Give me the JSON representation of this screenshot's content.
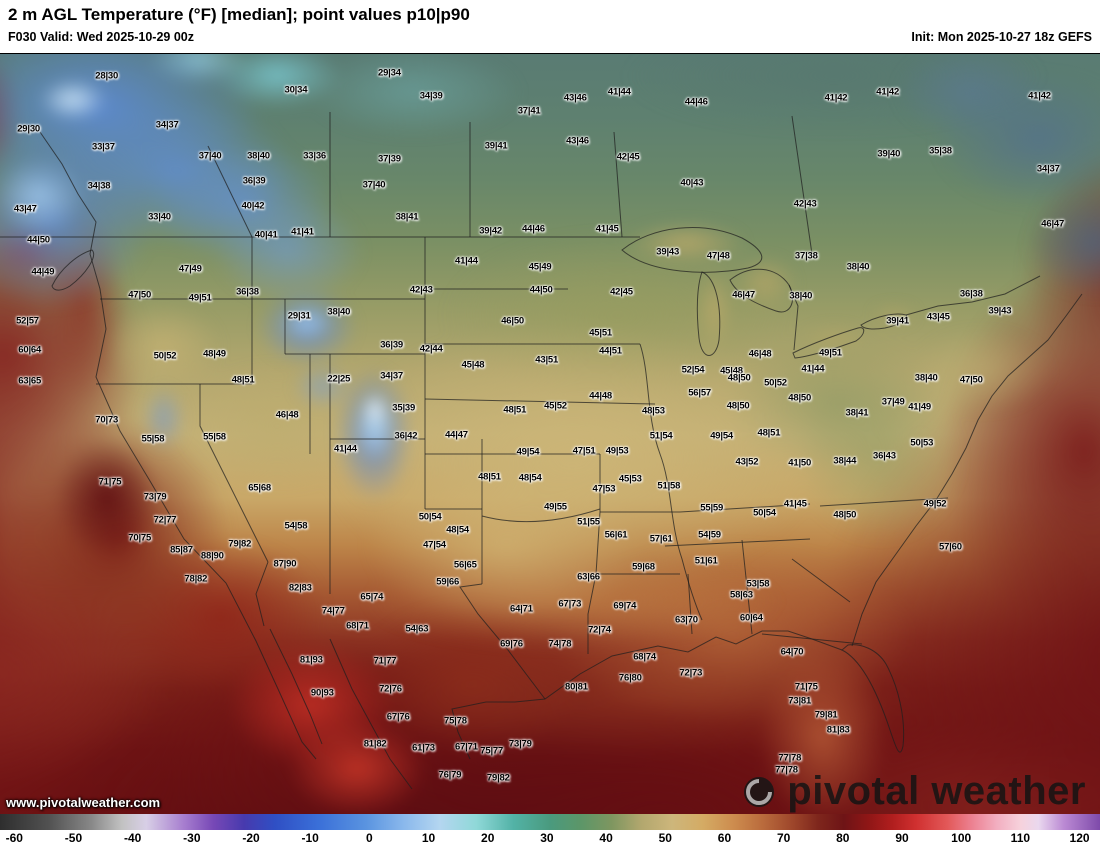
{
  "header": {
    "title": "2 m AGL Temperature (°F) [median]; point values p10|p90",
    "valid_label": "F030 Valid: Wed 2025-10-29 00z",
    "init_label": "Init: Mon 2025-10-27 18z GEFS"
  },
  "watermarks": {
    "url": "www.pivotalweather.com",
    "brand": "pivotal weather"
  },
  "colorbar": {
    "unit": "°F",
    "min": -60,
    "max": 120,
    "ticks": [
      -60,
      -50,
      -40,
      -30,
      -20,
      -10,
      0,
      10,
      20,
      30,
      40,
      50,
      60,
      70,
      80,
      90,
      100,
      110,
      120
    ],
    "tick_start_pct": 1.3,
    "tick_step_pct": 5.38,
    "stops": [
      [
        0,
        "#2e2e2e"
      ],
      [
        4.4,
        "#515151"
      ],
      [
        8.3,
        "#888888"
      ],
      [
        11.1,
        "#c2c2c2"
      ],
      [
        13.3,
        "#d8cfe6"
      ],
      [
        16.7,
        "#a77ecf"
      ],
      [
        19.4,
        "#7748b6"
      ],
      [
        22.2,
        "#473aae"
      ],
      [
        25,
        "#2f4fc4"
      ],
      [
        28.9,
        "#3a6fd8"
      ],
      [
        33.3,
        "#5a94e0"
      ],
      [
        36.7,
        "#8ab8ec"
      ],
      [
        40,
        "#b4d6f0"
      ],
      [
        43.3,
        "#8fd8d8"
      ],
      [
        46.7,
        "#52b2a6"
      ],
      [
        50,
        "#4a9a7e"
      ],
      [
        52.8,
        "#5c9668"
      ],
      [
        55.6,
        "#7e9660"
      ],
      [
        58.3,
        "#b2a76e"
      ],
      [
        61.1,
        "#cdb67b"
      ],
      [
        63.9,
        "#d4ab64"
      ],
      [
        66.7,
        "#cd8c4e"
      ],
      [
        69.4,
        "#b96a3c"
      ],
      [
        72.2,
        "#9c442a"
      ],
      [
        74.4,
        "#7e261c"
      ],
      [
        76.7,
        "#6e1416"
      ],
      [
        78.9,
        "#8e1616"
      ],
      [
        81.1,
        "#b01e1e"
      ],
      [
        83.3,
        "#d03030"
      ],
      [
        86.1,
        "#e25858"
      ],
      [
        88.3,
        "#ec8090"
      ],
      [
        90.6,
        "#f2aec0"
      ],
      [
        92.8,
        "#f6d2dc"
      ],
      [
        94.4,
        "#ead8ee"
      ],
      [
        96.7,
        "#bb8ad4"
      ],
      [
        100,
        "#7e4aaa"
      ]
    ]
  },
  "chart_data": {
    "type": "heatmap",
    "variable": "2 m AGL Temperature",
    "unit": "°F",
    "statistic": "median",
    "point_values": "p10|p90",
    "forecast_hour": "F030",
    "valid": "Wed 2025-10-29 00z",
    "init": "Mon 2025-10-27 18z",
    "model": "GEFS",
    "colorbar_range": [
      -60,
      120
    ],
    "points_format": "[x_pct, y_pct, p10, p90]",
    "points": [
      [
        9.7,
        2.9,
        28,
        30
      ],
      [
        26.9,
        4.7,
        30,
        34
      ],
      [
        35.4,
        2.5,
        29,
        34
      ],
      [
        39.2,
        5.5,
        34,
        39
      ],
      [
        48.1,
        7.5,
        37,
        41
      ],
      [
        52.3,
        5.8,
        43,
        46
      ],
      [
        56.3,
        5.0,
        41,
        44
      ],
      [
        63.3,
        6.3,
        44,
        46
      ],
      [
        76.0,
        5.8,
        41,
        42
      ],
      [
        80.7,
        5.0,
        41,
        42
      ],
      [
        94.5,
        5.5,
        41,
        42
      ],
      [
        2.6,
        9.9,
        29,
        30
      ],
      [
        15.2,
        9.3,
        34,
        37
      ],
      [
        9.4,
        12.2,
        33,
        37
      ],
      [
        19.1,
        13.4,
        37,
        40
      ],
      [
        23.5,
        13.4,
        38,
        40
      ],
      [
        28.6,
        13.4,
        33,
        36
      ],
      [
        35.4,
        13.8,
        37,
        39
      ],
      [
        45.1,
        12.1,
        39,
        41
      ],
      [
        52.5,
        11.4,
        43,
        46
      ],
      [
        57.1,
        13.6,
        42,
        45
      ],
      [
        80.8,
        13.2,
        39,
        40
      ],
      [
        85.5,
        12.8,
        35,
        38
      ],
      [
        95.3,
        15.1,
        34,
        37
      ],
      [
        9.0,
        17.4,
        34,
        38
      ],
      [
        23.1,
        16.7,
        36,
        39
      ],
      [
        34.0,
        17.2,
        37,
        40
      ],
      [
        62.9,
        17.0,
        40,
        43
      ],
      [
        73.2,
        19.7,
        42,
        43
      ],
      [
        95.7,
        22.4,
        46,
        47
      ],
      [
        2.3,
        20.4,
        43,
        47
      ],
      [
        14.5,
        21.4,
        33,
        40
      ],
      [
        23.0,
        20.0,
        40,
        42
      ],
      [
        37.0,
        21.4,
        38,
        41
      ],
      [
        3.5,
        24.5,
        44,
        50
      ],
      [
        24.2,
        23.8,
        40,
        41
      ],
      [
        27.5,
        23.4,
        41,
        41
      ],
      [
        44.6,
        23.3,
        39,
        42
      ],
      [
        48.5,
        23.0,
        44,
        46
      ],
      [
        55.2,
        23.0,
        41,
        45
      ],
      [
        60.7,
        26.1,
        39,
        43
      ],
      [
        65.3,
        26.6,
        47,
        48
      ],
      [
        73.3,
        26.6,
        37,
        38
      ],
      [
        78.0,
        28.0,
        38,
        40
      ],
      [
        3.9,
        28.7,
        44,
        49
      ],
      [
        17.3,
        28.3,
        47,
        49
      ],
      [
        22.5,
        31.3,
        36,
        38
      ],
      [
        42.4,
        27.2,
        41,
        44
      ],
      [
        49.1,
        28.0,
        45,
        49
      ],
      [
        49.2,
        31.1,
        44,
        50
      ],
      [
        56.5,
        31.3,
        42,
        45
      ],
      [
        12.7,
        31.7,
        47,
        50
      ],
      [
        18.2,
        32.1,
        49,
        51
      ],
      [
        38.3,
        31.1,
        42,
        43
      ],
      [
        72.8,
        31.8,
        38,
        40
      ],
      [
        88.3,
        31.6,
        36,
        38
      ],
      [
        67.6,
        31.7,
        46,
        47
      ],
      [
        2.5,
        35.1,
        52,
        57
      ],
      [
        27.2,
        34.5,
        29,
        31
      ],
      [
        30.8,
        33.9,
        38,
        40
      ],
      [
        46.6,
        35.1,
        46,
        50
      ],
      [
        54.6,
        36.7,
        45,
        51
      ],
      [
        81.6,
        35.1,
        39,
        41
      ],
      [
        85.3,
        34.6,
        43,
        45
      ],
      [
        90.9,
        33.8,
        39,
        43
      ],
      [
        75.5,
        39.3,
        49,
        51
      ],
      [
        73.9,
        41.4,
        41,
        44
      ],
      [
        84.2,
        42.6,
        38,
        40
      ],
      [
        88.3,
        42.9,
        47,
        50
      ],
      [
        81.2,
        45.8,
        37,
        49
      ],
      [
        83.6,
        46.4,
        41,
        49
      ],
      [
        77.9,
        47.2,
        38,
        41
      ],
      [
        2.7,
        38.9,
        60,
        64
      ],
      [
        15.0,
        39.7,
        50,
        52
      ],
      [
        19.5,
        39.5,
        48,
        49
      ],
      [
        35.6,
        38.3,
        36,
        39
      ],
      [
        39.2,
        38.8,
        42,
        44
      ],
      [
        55.5,
        39.1,
        44,
        51
      ],
      [
        63.0,
        41.6,
        52,
        54
      ],
      [
        69.1,
        39.5,
        46,
        48
      ],
      [
        66.5,
        41.7,
        45,
        48
      ],
      [
        2.7,
        43.0,
        63,
        65
      ],
      [
        22.1,
        42.9,
        48,
        51
      ],
      [
        30.8,
        42.8,
        22,
        25
      ],
      [
        35.6,
        42.4,
        34,
        37
      ],
      [
        43.0,
        40.9,
        45,
        48
      ],
      [
        49.7,
        40.3,
        43,
        51
      ],
      [
        63.6,
        44.6,
        56,
        57
      ],
      [
        67.2,
        42.6,
        48,
        50
      ],
      [
        70.5,
        43.3,
        50,
        52
      ],
      [
        9.7,
        48.2,
        70,
        73
      ],
      [
        26.1,
        47.5,
        46,
        48
      ],
      [
        36.7,
        46.6,
        35,
        39
      ],
      [
        46.8,
        46.8,
        48,
        51
      ],
      [
        50.5,
        46.3,
        45,
        52
      ],
      [
        54.6,
        45.0,
        44,
        48
      ],
      [
        59.4,
        47.0,
        48,
        53
      ],
      [
        67.1,
        46.3,
        48,
        50
      ],
      [
        72.7,
        45.3,
        48,
        50
      ],
      [
        13.9,
        50.7,
        55,
        58
      ],
      [
        19.5,
        50.4,
        55,
        58
      ],
      [
        31.4,
        52.0,
        41,
        44
      ],
      [
        36.9,
        50.3,
        36,
        42
      ],
      [
        41.5,
        50.1,
        44,
        47
      ],
      [
        48.0,
        52.4,
        49,
        54
      ],
      [
        60.1,
        50.3,
        51,
        54
      ],
      [
        65.6,
        50.3,
        49,
        54
      ],
      [
        69.9,
        49.9,
        48,
        51
      ],
      [
        67.9,
        53.7,
        43,
        52
      ],
      [
        72.7,
        53.8,
        41,
        50
      ],
      [
        76.8,
        53.6,
        38,
        44
      ],
      [
        80.4,
        52.9,
        36,
        43
      ],
      [
        83.8,
        51.2,
        50,
        53
      ],
      [
        53.1,
        52.2,
        47,
        51
      ],
      [
        56.1,
        52.2,
        49,
        53
      ],
      [
        10.0,
        56.3,
        71,
        75
      ],
      [
        23.6,
        57.1,
        65,
        68
      ],
      [
        44.5,
        55.7,
        48,
        51
      ],
      [
        48.2,
        55.8,
        48,
        54
      ],
      [
        57.3,
        55.9,
        45,
        53
      ],
      [
        60.8,
        56.8,
        51,
        58
      ],
      [
        54.9,
        57.2,
        47,
        53
      ],
      [
        50.5,
        59.6,
        49,
        55
      ],
      [
        53.5,
        61.6,
        51,
        55
      ],
      [
        64.7,
        59.7,
        55,
        59
      ],
      [
        69.5,
        60.4,
        50,
        54
      ],
      [
        76.8,
        60.7,
        48,
        50
      ],
      [
        72.3,
        59.2,
        41,
        45
      ],
      [
        86.4,
        64.9,
        57,
        60
      ],
      [
        85.0,
        59.2,
        49,
        52
      ],
      [
        14.1,
        58.3,
        73,
        79
      ],
      [
        15.0,
        61.3,
        72,
        77
      ],
      [
        12.7,
        63.7,
        70,
        75
      ],
      [
        16.5,
        65.3,
        85,
        87
      ],
      [
        19.3,
        66.1,
        88,
        90
      ],
      [
        21.8,
        64.5,
        79,
        82
      ],
      [
        17.8,
        69.1,
        78,
        82
      ],
      [
        25.9,
        67.1,
        87,
        90
      ],
      [
        26.9,
        62.1,
        54,
        58
      ],
      [
        39.1,
        60.9,
        50,
        54
      ],
      [
        41.6,
        62.6,
        48,
        54
      ],
      [
        39.5,
        64.6,
        47,
        54
      ],
      [
        56.0,
        63.3,
        56,
        61
      ],
      [
        60.1,
        63.8,
        57,
        61
      ],
      [
        64.5,
        63.3,
        54,
        59
      ],
      [
        58.5,
        67.5,
        59,
        68
      ],
      [
        53.5,
        68.8,
        63,
        66
      ],
      [
        42.3,
        67.2,
        56,
        65
      ],
      [
        40.7,
        69.5,
        59,
        66
      ],
      [
        47.4,
        73.0,
        64,
        71
      ],
      [
        51.8,
        72.4,
        67,
        73
      ],
      [
        56.8,
        72.6,
        69,
        74
      ],
      [
        54.5,
        75.8,
        72,
        74
      ],
      [
        37.9,
        75.7,
        54,
        63
      ],
      [
        32.5,
        75.3,
        68,
        71
      ],
      [
        33.8,
        71.4,
        65,
        74
      ],
      [
        27.3,
        70.3,
        82,
        83
      ],
      [
        30.3,
        73.3,
        74,
        77
      ],
      [
        64.2,
        66.7,
        51,
        61
      ],
      [
        68.9,
        69.7,
        53,
        58
      ],
      [
        67.4,
        71.2,
        58,
        63
      ],
      [
        68.3,
        74.2,
        60,
        64
      ],
      [
        62.4,
        74.5,
        63,
        70
      ],
      [
        46.5,
        77.6,
        69,
        76
      ],
      [
        50.9,
        77.6,
        74,
        78
      ],
      [
        58.6,
        79.3,
        68,
        74
      ],
      [
        62.8,
        81.4,
        72,
        73
      ],
      [
        57.3,
        82.1,
        76,
        80
      ],
      [
        52.4,
        83.3,
        80,
        81
      ],
      [
        72.0,
        78.7,
        64,
        70
      ],
      [
        73.3,
        83.3,
        71,
        75
      ],
      [
        72.7,
        85.1,
        73,
        81
      ],
      [
        75.1,
        87.0,
        79,
        81
      ],
      [
        76.2,
        88.9,
        81,
        83
      ],
      [
        71.8,
        92.6,
        77,
        78
      ],
      [
        35.0,
        79.9,
        71,
        77
      ],
      [
        35.5,
        83.6,
        72,
        76
      ],
      [
        36.2,
        87.2,
        67,
        76
      ],
      [
        28.3,
        79.7,
        81,
        93
      ],
      [
        29.3,
        84.1,
        90,
        93
      ],
      [
        41.4,
        87.8,
        75,
        78
      ],
      [
        38.5,
        91.3,
        61,
        73
      ],
      [
        34.1,
        90.8,
        81,
        82
      ],
      [
        42.4,
        91.2,
        67,
        71
      ],
      [
        44.7,
        91.7,
        75,
        77
      ],
      [
        47.3,
        90.8,
        73,
        79
      ],
      [
        40.9,
        94.9,
        76,
        79
      ],
      [
        45.3,
        95.3,
        79,
        82
      ],
      [
        71.5,
        94.2,
        77,
        78
      ]
    ]
  }
}
